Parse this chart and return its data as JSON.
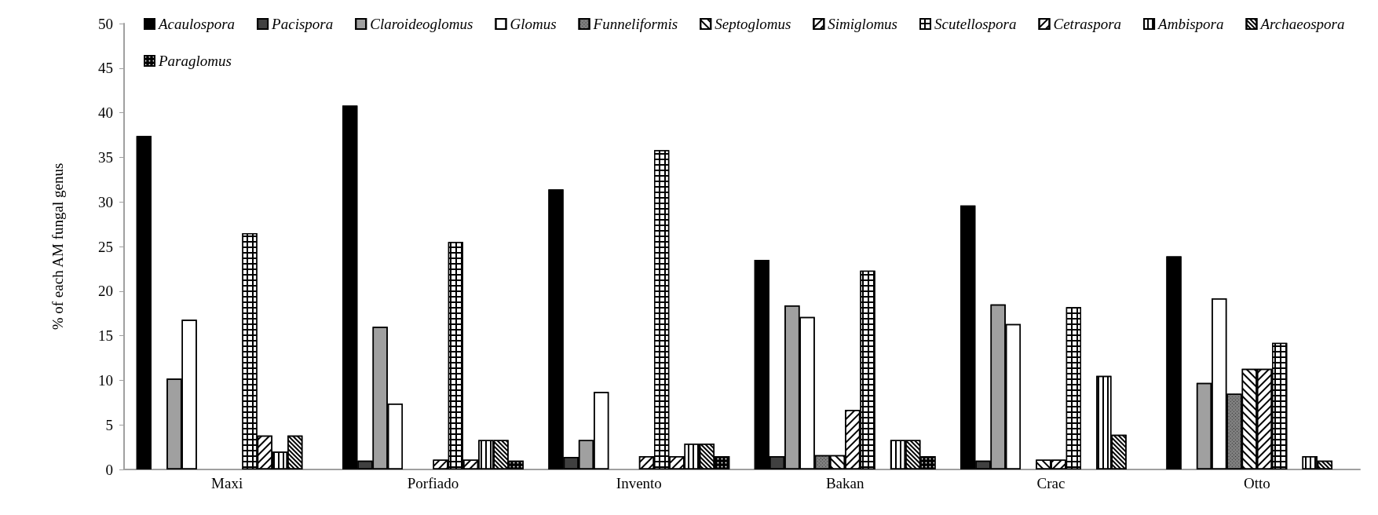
{
  "chart_data": {
    "type": "bar",
    "ylabel": "% of each AM fungal genus",
    "categories": [
      "Maxi",
      "Porfiado",
      "Invento",
      "Bakan",
      "Crac",
      "Otto"
    ],
    "ylim": [
      0,
      50
    ],
    "yticks": [
      0,
      5,
      10,
      15,
      20,
      25,
      30,
      35,
      40,
      45,
      50
    ],
    "grid": false,
    "legend": "top",
    "series": [
      {
        "name": "Acaulospora",
        "color": "#000000",
        "values": [
          37.4,
          40.8,
          31.4,
          23.5,
          29.6,
          23.9
        ]
      },
      {
        "name": "Pacispora",
        "color": "#404040",
        "values": [
          null,
          1.0,
          1.4,
          1.5,
          1.0,
          null
        ]
      },
      {
        "name": "Claroideoglomus",
        "color": "#a0a0a0",
        "values": [
          10.2,
          16.0,
          3.3,
          18.4,
          18.5,
          9.7
        ]
      },
      {
        "name": "Glomus",
        "color": "#ffffff",
        "values": [
          16.8,
          7.4,
          8.7,
          17.1,
          16.3,
          19.2
        ]
      },
      {
        "name": "Funneliformis",
        "color": "#808080",
        "values": [
          null,
          null,
          null,
          1.6,
          null,
          8.5
        ]
      },
      {
        "name": "Septoglomus",
        "color": "#ffffff",
        "values": [
          null,
          null,
          null,
          1.6,
          1.1,
          11.3
        ]
      },
      {
        "name": "Simiglomus",
        "color": "#ffffff",
        "values": [
          null,
          1.1,
          1.5,
          6.7,
          1.1,
          11.3
        ]
      },
      {
        "name": "Scutellospora",
        "color": "#000000",
        "values": [
          26.5,
          25.5,
          35.8,
          22.3,
          18.2,
          14.2
        ]
      },
      {
        "name": "Cetraspora",
        "color": "#ffffff",
        "values": [
          3.8,
          1.1,
          1.5,
          null,
          null,
          null
        ]
      },
      {
        "name": "Ambispora",
        "color": "#ffffff",
        "values": [
          2.0,
          3.3,
          2.9,
          3.3,
          10.5,
          1.5
        ]
      },
      {
        "name": "Archaeospora",
        "color": "#ffffff",
        "values": [
          3.8,
          3.3,
          2.9,
          3.3,
          3.9,
          1.0
        ]
      },
      {
        "name": "Paraglomus",
        "color": "#000000",
        "values": [
          null,
          1.0,
          1.5,
          1.5,
          null,
          null
        ]
      }
    ]
  }
}
